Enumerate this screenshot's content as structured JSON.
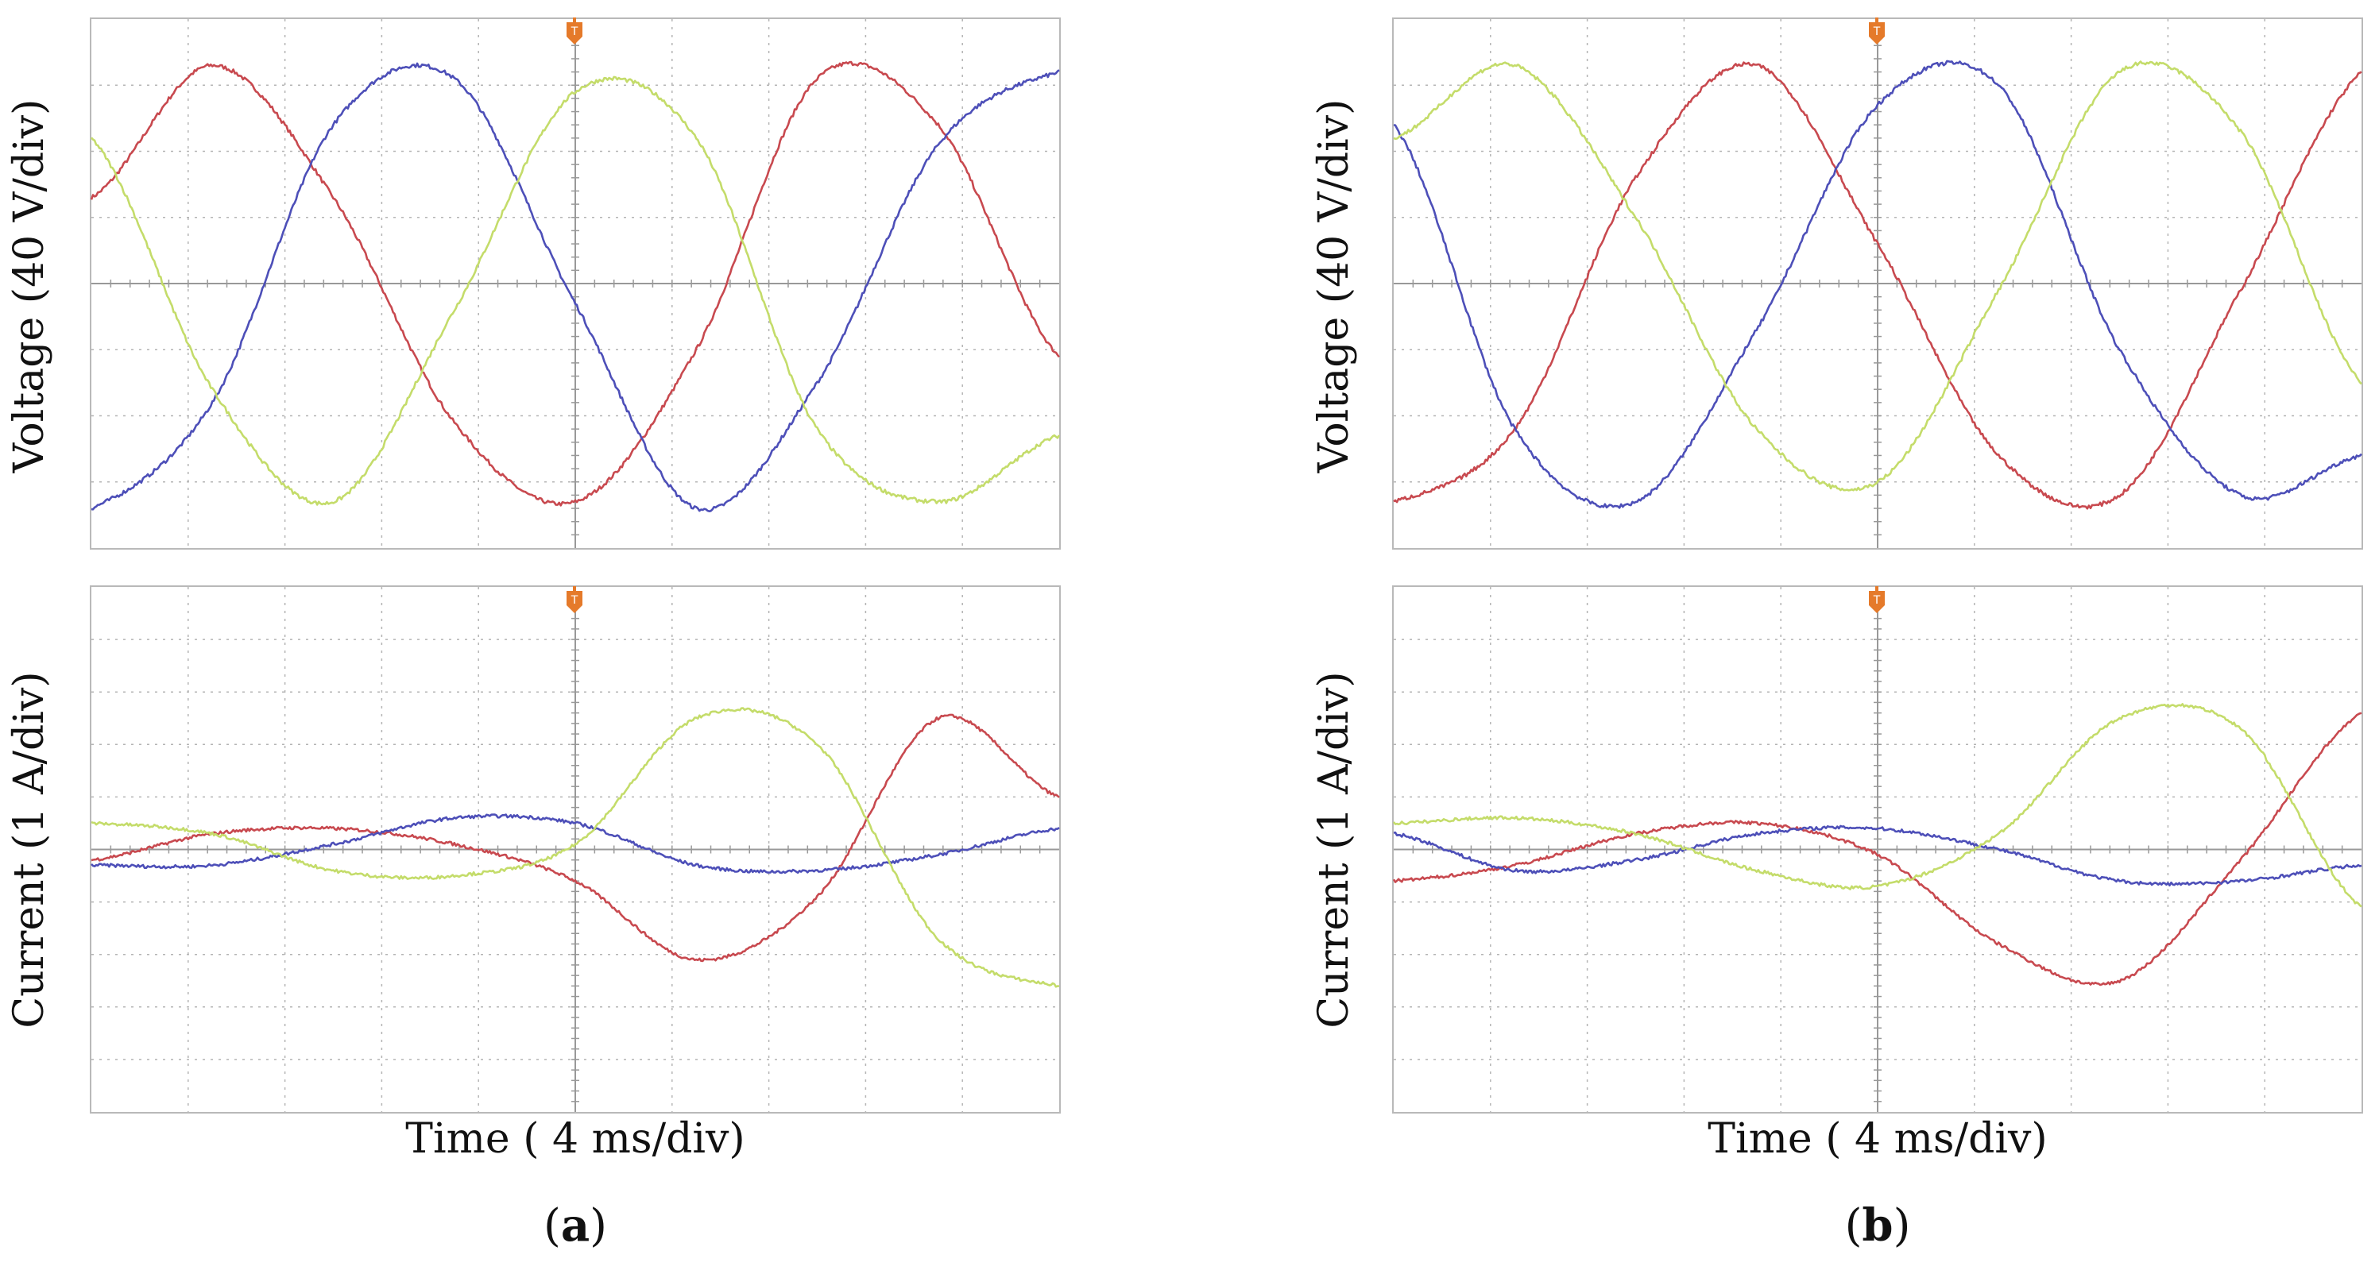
{
  "colors": {
    "red": "#c8494f",
    "blue": "#4d4fb8",
    "yellow": "#c4dc6a",
    "grid": "#b4b4b4",
    "trigger": "#e57a2a"
  },
  "chart_data": [
    {
      "type": "line",
      "id": "a-voltage",
      "ylabel": "Voltage (40 V/div)",
      "xlabel": "",
      "x_divisions": 10,
      "y_divisions": 8,
      "xlim": [
        0,
        10
      ],
      "ylim": [
        -4,
        4
      ],
      "series": [
        {
          "color": "red",
          "x": [
            0,
            1.25,
            2.5,
            3.75,
            5,
            6.25,
            7.5,
            8.75,
            10
          ],
          "y": [
            1.3,
            3.3,
            1.3,
            -2.1,
            -3.3,
            -1.0,
            3.1,
            2.4,
            -1.1
          ]
        },
        {
          "color": "blue",
          "x": [
            0,
            1.25,
            2.5,
            3.75,
            5,
            6.25,
            7.5,
            8.75,
            10
          ],
          "y": [
            -3.4,
            -1.8,
            2.4,
            3.1,
            -0.3,
            -3.4,
            -1.5,
            2.1,
            3.2
          ]
        },
        {
          "color": "yellow",
          "x": [
            0,
            1.25,
            2.5,
            3.75,
            5,
            6.25,
            7.5,
            8.75,
            10
          ],
          "y": [
            2.2,
            -1.6,
            -3.3,
            -0.4,
            2.9,
            2.2,
            -2.2,
            -3.3,
            -2.3
          ]
        }
      ]
    },
    {
      "type": "line",
      "id": "a-current",
      "ylabel": "Current (1 A/div)",
      "xlabel": "Time ( 4 ms/div)",
      "x_divisions": 10,
      "y_divisions": 10,
      "xlim": [
        0,
        10
      ],
      "ylim": [
        -5,
        5
      ],
      "series": [
        {
          "color": "red",
          "x": [
            0,
            1.25,
            2.5,
            3.75,
            5,
            6.25,
            7.5,
            8.75,
            10
          ],
          "y": [
            -0.2,
            0.3,
            0.4,
            0.1,
            -0.6,
            -2.1,
            -0.9,
            2.5,
            1.0
          ]
        },
        {
          "color": "blue",
          "x": [
            0,
            1.25,
            2.5,
            3.75,
            5,
            6.25,
            7.5,
            8.75,
            10
          ],
          "y": [
            -0.3,
            -0.3,
            0.1,
            0.6,
            0.5,
            -0.3,
            -0.4,
            -0.1,
            0.4
          ]
        },
        {
          "color": "yellow",
          "x": [
            0,
            1.25,
            2.5,
            3.75,
            5,
            6.25,
            7.5,
            8.75,
            10
          ],
          "y": [
            0.5,
            0.3,
            -0.4,
            -0.5,
            0.1,
            2.5,
            2.0,
            -1.7,
            -2.6
          ]
        }
      ]
    },
    {
      "type": "line",
      "id": "b-voltage",
      "ylabel": "Voltage (40 V/div)",
      "xlabel": "",
      "x_divisions": 10,
      "y_divisions": 8,
      "xlim": [
        0,
        10
      ],
      "ylim": [
        -4,
        4
      ],
      "series": [
        {
          "color": "red",
          "x": [
            0,
            1.25,
            2.5,
            3.75,
            5,
            6.25,
            7.5,
            8.75,
            10
          ],
          "y": [
            -3.3,
            -2.2,
            1.6,
            3.3,
            0.6,
            -2.6,
            -3.2,
            -0.1,
            3.2
          ]
        },
        {
          "color": "blue",
          "x": [
            0,
            1.25,
            2.5,
            3.75,
            5,
            6.25,
            7.5,
            8.75,
            10
          ],
          "y": [
            2.4,
            -2.2,
            -3.3,
            -0.7,
            2.7,
            3.0,
            -1.0,
            -3.2,
            -2.6
          ]
        },
        {
          "color": "yellow",
          "x": [
            0,
            1.25,
            2.5,
            3.75,
            5,
            6.25,
            7.5,
            8.75,
            10
          ],
          "y": [
            2.2,
            3.3,
            1.0,
            -2.2,
            -3.0,
            -0.1,
            3.2,
            2.3,
            -1.5
          ]
        }
      ]
    },
    {
      "type": "line",
      "id": "b-current",
      "ylabel": "Current (1 A/div)",
      "xlabel": "Time ( 4 ms/div)",
      "x_divisions": 10,
      "y_divisions": 10,
      "xlim": [
        0,
        10
      ],
      "ylim": [
        -5,
        5
      ],
      "series": [
        {
          "color": "red",
          "x": [
            0,
            1.25,
            2.5,
            3.75,
            5,
            6.25,
            7.5,
            8.75,
            10
          ],
          "y": [
            -0.6,
            -0.3,
            0.3,
            0.5,
            -0.1,
            -1.8,
            -2.5,
            -0.2,
            2.6
          ]
        },
        {
          "color": "blue",
          "x": [
            0,
            1.25,
            2.5,
            3.75,
            5,
            6.25,
            7.5,
            8.75,
            10
          ],
          "y": [
            0.3,
            -0.4,
            -0.2,
            0.3,
            0.4,
            0.0,
            -0.6,
            -0.6,
            -0.3
          ]
        },
        {
          "color": "yellow",
          "x": [
            0,
            1.25,
            2.5,
            3.75,
            5,
            6.25,
            7.5,
            8.75,
            10
          ],
          "y": [
            0.5,
            0.6,
            0.3,
            -0.4,
            -0.7,
            0.3,
            2.5,
            2.3,
            -1.1
          ]
        }
      ]
    }
  ],
  "panels": {
    "a": {
      "label_letter": "a"
    },
    "b": {
      "label_letter": "b"
    }
  }
}
